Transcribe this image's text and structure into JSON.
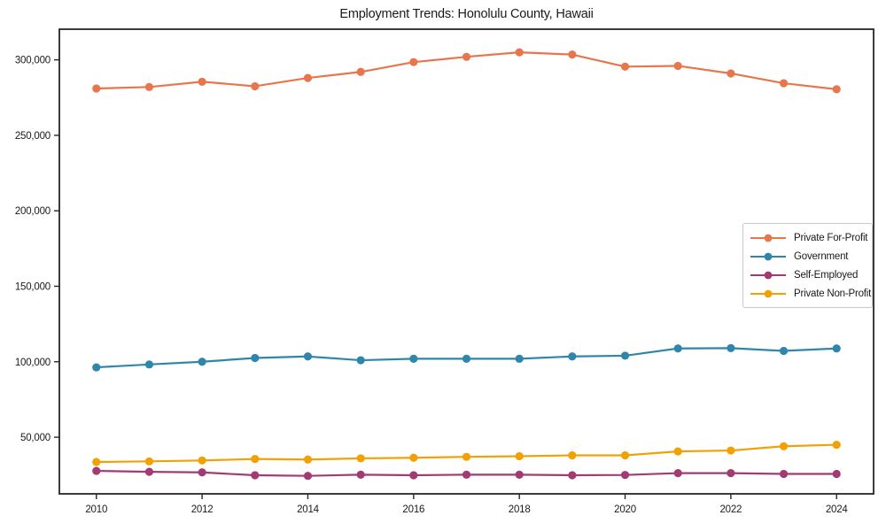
{
  "title": "Employment Trends: Honolulu County, Hawaii",
  "chart_data": {
    "type": "line",
    "title": "Employment Trends: Honolulu County, Hawaii",
    "xlabel": "",
    "ylabel": "",
    "grid": false,
    "legend_position": "center right",
    "x": [
      2010,
      2011,
      2012,
      2013,
      2014,
      2015,
      2016,
      2017,
      2018,
      2019,
      2020,
      2021,
      2022,
      2023,
      2024
    ],
    "series": [
      {
        "name": "Private For-Profit",
        "color": "#E8764C",
        "values": [
          281000,
          282000,
          285500,
          282500,
          288000,
          292000,
          298500,
          302000,
          305000,
          303500,
          295500,
          296000,
          291000,
          284500,
          280500
        ]
      },
      {
        "name": "Government",
        "color": "#2E86AB",
        "values": [
          96300,
          98200,
          100000,
          102500,
          103500,
          101000,
          102000,
          102000,
          102000,
          103500,
          104000,
          108800,
          109000,
          107200,
          108800
        ]
      },
      {
        "name": "Self-Employed",
        "color": "#A23B72",
        "values": [
          27700,
          27100,
          26700,
          24800,
          24400,
          25200,
          24800,
          25200,
          25200,
          24800,
          25000,
          26200,
          26200,
          25700,
          25700
        ]
      },
      {
        "name": "Private Non-Profit",
        "color": "#F2A104",
        "values": [
          33600,
          34000,
          34600,
          35600,
          35200,
          36000,
          36400,
          37000,
          37400,
          38000,
          38000,
          40600,
          41200,
          44000,
          45000
        ]
      }
    ],
    "x_tick_values": [
      2010,
      2012,
      2014,
      2016,
      2018,
      2020,
      2022,
      2024
    ],
    "x_tick_labels": [
      "2010",
      "2012",
      "2014",
      "2016",
      "2018",
      "2020",
      "2022",
      "2024"
    ],
    "y_tick_values": [
      50000,
      100000,
      150000,
      200000,
      250000,
      300000
    ],
    "y_tick_labels": [
      "50,000",
      "100,000",
      "150,000",
      "200,000",
      "250,000",
      "300,000"
    ],
    "xlim": [
      2009.3,
      2024.7
    ],
    "ylim": [
      12500,
      320300
    ],
    "axis_color": "#262626"
  }
}
